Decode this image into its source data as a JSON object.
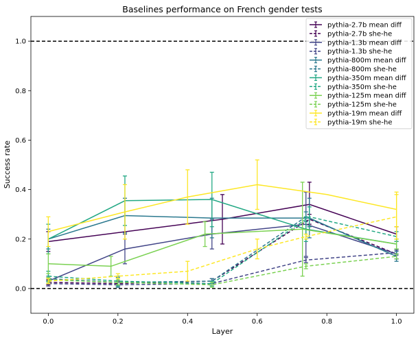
{
  "chart_data": {
    "type": "line",
    "title": "Baselines performance on French gender tests",
    "xlabel": "Layer",
    "ylabel": "Success rate",
    "xlim": [
      -0.05,
      1.05
    ],
    "ylim": [
      -0.1,
      1.1
    ],
    "xticks": [
      0.0,
      0.2,
      0.4,
      0.6,
      0.8,
      1.0
    ],
    "xtick_labels": [
      "0.0",
      "0.2",
      "0.4",
      "0.6",
      "0.8",
      "1.0"
    ],
    "yticks": [
      0.0,
      0.2,
      0.4,
      0.6,
      0.8,
      1.0
    ],
    "ytick_labels": [
      "0.0",
      "0.2",
      "0.4",
      "0.6",
      "0.8",
      "1.0"
    ],
    "reference_lines": [
      0.0,
      1.0
    ],
    "grid": false,
    "legend_position": "top-right",
    "series": [
      {
        "name": "pythia-2.7b mean diff",
        "color": "#440154",
        "dash": "solid",
        "x": [
          0.0,
          0.5,
          0.75,
          1.0
        ],
        "y": [
          0.19,
          0.28,
          0.34,
          0.22
        ],
        "err": [
          0.04,
          0.1,
          0.09,
          0.03
        ]
      },
      {
        "name": "pythia-2.7b she-he",
        "color": "#440154",
        "dash": "dashed",
        "x": [
          0.0,
          0.2,
          0.47,
          0.75,
          1.0
        ],
        "y": [
          0.025,
          0.02,
          0.03,
          0.28,
          0.14
        ],
        "err": [
          0.01,
          0.01,
          0.01,
          0.02,
          0.02
        ]
      },
      {
        "name": "pythia-1.3b mean diff",
        "color": "#414487",
        "dash": "solid",
        "x": [
          0.0,
          0.22,
          0.47,
          0.74,
          1.0
        ],
        "y": [
          0.03,
          0.16,
          0.22,
          0.26,
          0.14
        ],
        "err": [
          0.01,
          0.06,
          0.06,
          0.13,
          0.02
        ]
      },
      {
        "name": "pythia-1.3b she-he",
        "color": "#414487",
        "dash": "dashed",
        "x": [
          0.0,
          0.2,
          0.47,
          0.74,
          1.0
        ],
        "y": [
          0.02,
          0.015,
          0.02,
          0.115,
          0.145
        ],
        "err": [
          0.01,
          0.01,
          0.01,
          0.01,
          0.01
        ]
      },
      {
        "name": "pythia-800m mean diff",
        "color": "#2a788e",
        "dash": "solid",
        "x": [
          0.0,
          0.22,
          0.47,
          0.75,
          1.0
        ],
        "y": [
          0.2,
          0.295,
          0.285,
          0.285,
          0.13
        ],
        "err": [
          0.04,
          0.07,
          0.08,
          0.08,
          0.01
        ]
      },
      {
        "name": "pythia-800m she-he",
        "color": "#2a788e",
        "dash": "dashed",
        "x": [
          0.0,
          0.2,
          0.47,
          0.74,
          1.0
        ],
        "y": [
          0.04,
          0.025,
          0.03,
          0.29,
          0.13
        ],
        "err": [
          0.01,
          0.02,
          0.01,
          0.02,
          0.02
        ]
      },
      {
        "name": "pythia-350m mean diff",
        "color": "#22a884",
        "dash": "solid",
        "x": [
          0.0,
          0.22,
          0.47,
          0.74,
          1.0
        ],
        "y": [
          0.2,
          0.355,
          0.36,
          0.24,
          0.18
        ],
        "err": [
          0.06,
          0.1,
          0.11,
          0.05,
          0.02
        ]
      },
      {
        "name": "pythia-350m she-he",
        "color": "#22a884",
        "dash": "dashed",
        "x": [
          0.0,
          0.2,
          0.47,
          0.75,
          1.0
        ],
        "y": [
          0.05,
          0.03,
          0.02,
          0.29,
          0.21
        ],
        "err": [
          0.02,
          0.02,
          0.01,
          0.04,
          0.02
        ]
      },
      {
        "name": "pythia-125m mean diff",
        "color": "#7ad151",
        "dash": "solid",
        "x": [
          0.0,
          0.18,
          0.45,
          0.73,
          1.0
        ],
        "y": [
          0.1,
          0.09,
          0.22,
          0.24,
          0.18
        ],
        "err": [
          0.04,
          0.04,
          0.05,
          0.19,
          0.02
        ]
      },
      {
        "name": "pythia-125m she-he",
        "color": "#7ad151",
        "dash": "dashed",
        "x": [
          0.0,
          0.2,
          0.47,
          0.74,
          1.0
        ],
        "y": [
          0.035,
          0.025,
          0.015,
          0.09,
          0.13
        ],
        "err": [
          0.01,
          0.01,
          0.01,
          0.01,
          0.01
        ]
      },
      {
        "name": "pythia-19m mean diff",
        "color": "#fde725",
        "dash": "solid",
        "x": [
          0.0,
          0.22,
          0.4,
          0.6,
          0.8,
          1.0
        ],
        "y": [
          0.23,
          0.31,
          0.37,
          0.42,
          0.38,
          0.32
        ],
        "err": [
          0.06,
          0.11,
          0.11,
          0.1,
          0.0,
          0.07
        ]
      },
      {
        "name": "pythia-19m she-he",
        "color": "#fde725",
        "dash": "dashed",
        "x": [
          0.0,
          0.2,
          0.4,
          0.6,
          0.74,
          1.0
        ],
        "y": [
          0.03,
          0.05,
          0.07,
          0.16,
          0.21,
          0.29
        ],
        "err": [
          0.01,
          0.01,
          0.04,
          0.04,
          0.01,
          0.09
        ]
      }
    ]
  }
}
